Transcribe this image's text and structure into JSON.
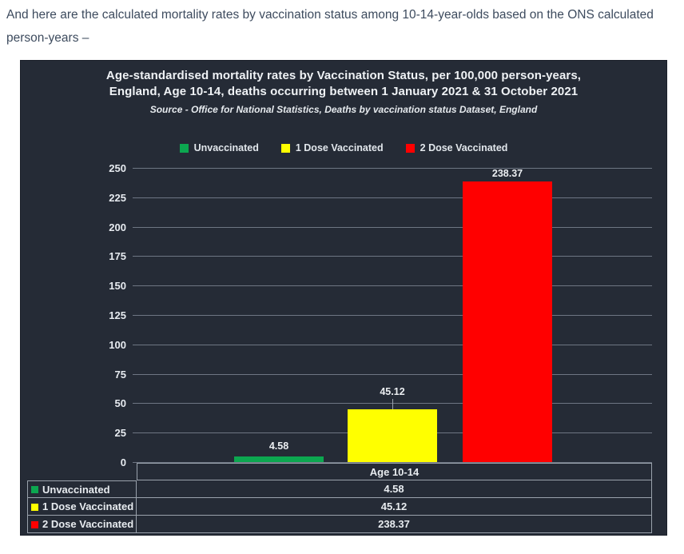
{
  "intro": {
    "text": "And here are the calculated mortality rates by vaccination status among 10-14-year-olds based on the ONS calculated person-years –"
  },
  "chart": {
    "title_line1": "Age-standardised mortality rates by Vaccination Status, per 100,000 person-years,",
    "title_line2": "England, Age 10-14, deaths occurring between 1 January 2021 & 31 October 2021",
    "source": "Source - Office for National Statistics, Deaths by vaccination status Dataset, England"
  },
  "chart_data": {
    "type": "bar",
    "title": "Age-standardised mortality rates by Vaccination Status, per 100,000 person-years, England, Age 10-14, deaths occurring between 1 January 2021 & 31 October 2021",
    "subtitle": "Source - Office for National Statistics, Deaths by vaccination status Dataset, England",
    "categories": [
      "Age 10-14"
    ],
    "series": [
      {
        "name": "Unvaccinated",
        "values": [
          4.58
        ],
        "label": "4.58",
        "color": "#0CA750"
      },
      {
        "name": "1 Dose Vaccinated",
        "values": [
          45.12
        ],
        "label": "45.12",
        "color": "#FFFF00"
      },
      {
        "name": "2 Dose Vaccinated",
        "values": [
          238.37
        ],
        "label": "238.37",
        "color": "#FF0000"
      }
    ],
    "xlabel": "",
    "ylabel": "",
    "ylim": [
      0,
      250
    ],
    "ytick_step": 25,
    "yticks": [
      0,
      25,
      50,
      75,
      100,
      125,
      150,
      175,
      200,
      225,
      250
    ],
    "grid": true,
    "legend_position": "top",
    "data_table_shown": true
  },
  "colors": {
    "page_text": "#3D4B5E",
    "chart_background": "#252B36",
    "grid_line": "#6E7683",
    "table_border": "#9AA2AC",
    "chart_text": "#E8ECF0",
    "unvaccinated": "#0CA750",
    "one_dose_vaccinated": "#FFFF00",
    "two_dose_vaccinated": "#FF0000"
  }
}
